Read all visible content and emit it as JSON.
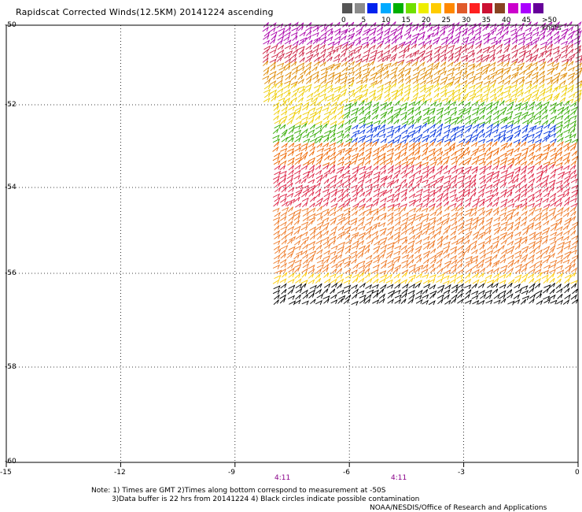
{
  "title": "Rapidscat Corrected Winds(12.5KM) 20141224 ascending",
  "scale": {
    "colors": [
      "#555555",
      "#8c8c8c",
      "#0022ee",
      "#00aaff",
      "#00b000",
      "#70e000",
      "#eeee00",
      "#ffcc00",
      "#ff8800",
      "#e05a2a",
      "#ff2020",
      "#cc1133",
      "#884422",
      "#cc00cc",
      "#aa00ff",
      "#660099"
    ],
    "labels": [
      "0",
      "5",
      "10",
      "15",
      "20",
      "25",
      "30",
      "35",
      "40",
      "45",
      ">50 knots"
    ]
  },
  "y_axis": {
    "labels": [
      "-50",
      "-52",
      "-54",
      "-56",
      "-58",
      "-60"
    ]
  },
  "x_axis": {
    "labels": [
      "-15",
      "-12",
      "-9",
      "-6",
      "-3",
      "0"
    ]
  },
  "times": [
    "4:11",
    "4:11"
  ],
  "notes": {
    "line1": "Note: 1) Times are GMT 2)Times along bottom correspond to measurement at -50S",
    "line2": "3)Data buffer is 22 hrs from 20141224 4) Black circles indicate possible contamination",
    "line3": "NOAA/NESDIS/Office of Research and Applications"
  },
  "wind_field": {
    "bands": [
      {
        "lat_range": [
          -50.0,
          -50.5
        ],
        "color": "#aa00aa"
      },
      {
        "lat_range": [
          -50.5,
          -51.0
        ],
        "color": "#cc2244"
      },
      {
        "lat_range": [
          -51.0,
          -51.5
        ],
        "color": "#dd8800"
      },
      {
        "lat_range": [
          -51.5,
          -52.0
        ],
        "color": "#eecc00"
      },
      {
        "lat_range": [
          -52.0,
          -52.5
        ],
        "color": "#33aa00"
      },
      {
        "lat_range": [
          -52.5,
          -53.0
        ],
        "color": "#0033dd"
      },
      {
        "lat_range": [
          -53.0,
          -53.5
        ],
        "color": "#ee6600"
      },
      {
        "lat_range": [
          -53.5,
          -54.5
        ],
        "color": "#dd2244"
      },
      {
        "lat_range": [
          -54.5,
          -56.0
        ],
        "color": "#ee7722"
      },
      {
        "lat_range": [
          -56.0,
          -56.3
        ],
        "color": "#ffcc00"
      },
      {
        "lat_range": [
          -56.3,
          -56.7
        ],
        "color": "#000000"
      }
    ]
  }
}
